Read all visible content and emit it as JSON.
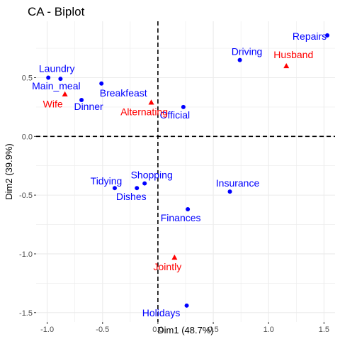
{
  "chart_data": {
    "type": "scatter",
    "title": "CA - Biplot",
    "xlabel": "Dim1 (48.7%)",
    "ylabel": "Dim2 (39.9%)",
    "xlim": [
      -1.1,
      1.6
    ],
    "ylim": [
      -1.58,
      0.98
    ],
    "x_ticks": [
      -1.0,
      -0.5,
      0.0,
      0.5,
      1.0,
      1.5
    ],
    "x_tick_labels": [
      "-1.0",
      "-0.5",
      "0.0",
      "0.5",
      "1.0",
      "1.5"
    ],
    "y_ticks": [
      -1.5,
      -1.0,
      -0.5,
      0.0,
      0.5
    ],
    "y_tick_labels": [
      "-1.5",
      "-1.0",
      "-0.5",
      "0.0",
      "0.5"
    ],
    "grid": true,
    "reference_lines": {
      "x": 0,
      "y": 0,
      "style": "dashed"
    },
    "colors": {
      "rows": "#0000ff",
      "columns": "#ff0000",
      "panel_bg": "#ffffff",
      "grid": "#ebebeb"
    },
    "series": [
      {
        "marker": "circle",
        "color": "#0000ff",
        "points": [
          {
            "label": "Laundry",
            "x": -0.99,
            "y": 0.5
          },
          {
            "label": "Main_meal",
            "x": -0.88,
            "y": 0.49
          },
          {
            "label": "Dinner",
            "x": -0.69,
            "y": 0.31
          },
          {
            "label": "Breakfeast",
            "x": -0.51,
            "y": 0.45
          },
          {
            "label": "Tidying",
            "x": -0.39,
            "y": -0.44
          },
          {
            "label": "Dishes",
            "x": -0.19,
            "y": -0.44
          },
          {
            "label": "Shopping",
            "x": -0.12,
            "y": -0.4
          },
          {
            "label": "Official",
            "x": 0.23,
            "y": 0.25
          },
          {
            "label": "Driving",
            "x": 0.74,
            "y": 0.65
          },
          {
            "label": "Finances",
            "x": 0.27,
            "y": -0.62
          },
          {
            "label": "Insurance",
            "x": 0.65,
            "y": -0.47
          },
          {
            "label": "Repairs",
            "x": 1.53,
            "y": 0.86
          },
          {
            "label": "Holidays",
            "x": 0.26,
            "y": -1.44
          }
        ]
      },
      {
        "marker": "triangle",
        "color": "#ff0000",
        "points": [
          {
            "label": "Wife",
            "x": -0.84,
            "y": 0.36
          },
          {
            "label": "Alternating",
            "x": -0.06,
            "y": 0.29
          },
          {
            "label": "Husband",
            "x": 1.16,
            "y": 0.6
          },
          {
            "label": "Jointly",
            "x": 0.15,
            "y": -1.03
          }
        ]
      }
    ]
  }
}
